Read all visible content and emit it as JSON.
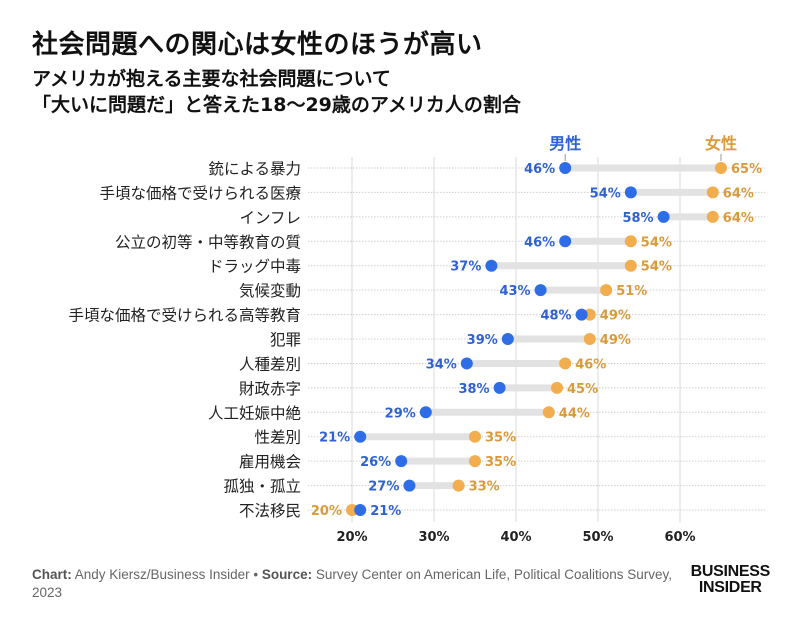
{
  "header": {
    "title": "社会問題への関心は女性のほうが高い",
    "subtitle_line1": "アメリカが抱える主要な社会問題について",
    "subtitle_line2": "「大いに問題だ」と答えた18〜29歳のアメリカ人の割合"
  },
  "chart_data": {
    "type": "dumbbell",
    "title": "社会問題への関心は女性のほうが高い",
    "xlabel": "",
    "ylabel": "",
    "xlim": [
      20,
      60
    ],
    "x_ticks": [
      "20%",
      "30%",
      "40%",
      "50%",
      "60%"
    ],
    "x_tick_values": [
      20,
      30,
      40,
      50,
      60
    ],
    "grid": true,
    "legend_placement": "top",
    "categories": [
      "銃による暴力",
      "手頃な価格で受けられる医療",
      "インフレ",
      "公立の初等・中等教育の質",
      "ドラッグ中毒",
      "気候変動",
      "手頃な価格で受けられる高等教育",
      "犯罪",
      "人種差別",
      "財政赤字",
      "人工妊娠中絶",
      "性差別",
      "雇用機会",
      "孤独・孤立",
      "不法移民"
    ],
    "series": [
      {
        "name": "男性",
        "color": "#2f6de6",
        "values": [
          46,
          54,
          58,
          46,
          37,
          43,
          48,
          39,
          34,
          38,
          29,
          21,
          26,
          27,
          21
        ]
      },
      {
        "name": "女性",
        "color": "#f2ad4e",
        "values": [
          65,
          64,
          64,
          54,
          54,
          51,
          49,
          49,
          46,
          45,
          44,
          35,
          35,
          33,
          20
        ]
      }
    ],
    "label_colors": {
      "男性": "#2f62d0",
      "女性": "#d99a3c"
    }
  },
  "footer": {
    "chart_label": "Chart:",
    "chart_credit": " Andy Kiersz/Business Insider • ",
    "source_label": "Source:",
    "source_text": " Survey Center on American Life, Political Coalitions Survey, 2023"
  },
  "logo": {
    "line1": "BUSINESS",
    "line2": "INSIDER"
  }
}
